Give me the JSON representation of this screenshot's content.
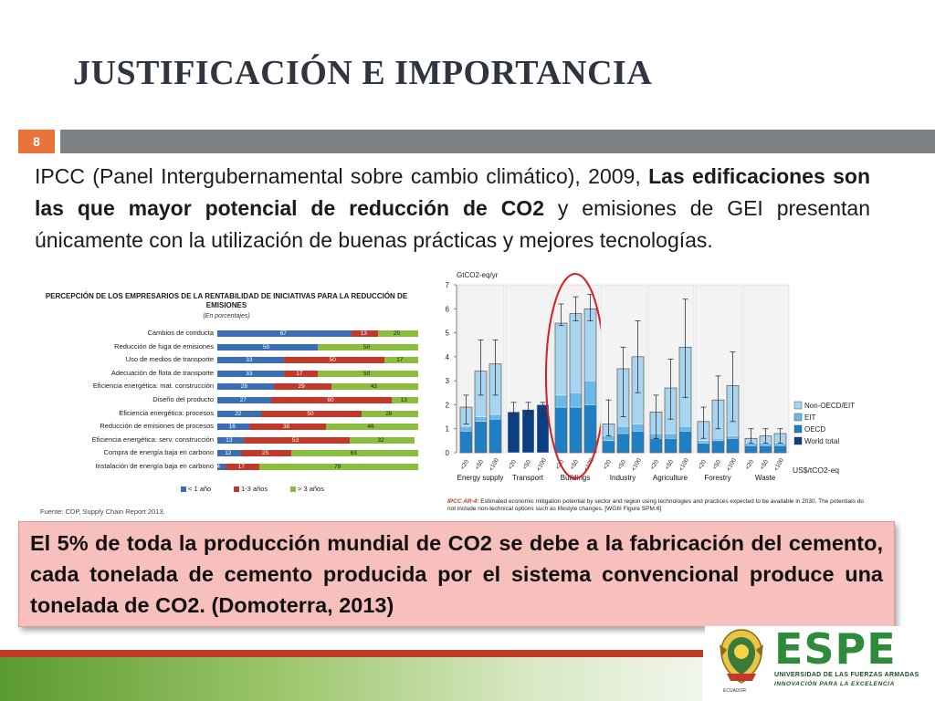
{
  "slide": {
    "title": "JUSTIFICACIÓN E IMPORTANCIA",
    "page_number": "8",
    "intro_prefix": "IPCC (Panel Intergubernamental sobre cambio climático), 2009, ",
    "intro_bold": "Las edificaciones son las que mayor potencial de reducción de CO2",
    "intro_suffix": " y emisiones de GEI presentan únicamente con la utilización de buenas prácticas y mejores tecnologías.",
    "callout": "El 5% de toda la producción mundial de CO2 se debe a la fabricación del cemento, cada tonelada de cemento producida por el sistema convencional produce una tonelada de CO2. (Domoterra, 2013)"
  },
  "branding": {
    "wordmark": "ESPE",
    "university": "UNIVERSIDAD DE LAS FUERZAS ARMADAS",
    "slogan": "INNOVACIÓN PARA LA EXCELENCIA",
    "crest_caption": "ECUADOR"
  },
  "colors": {
    "accent": "#e8743b",
    "footer_red": "#c0392b",
    "footer_green": "#5a9a2f",
    "callout_bg": "#f7c0bd"
  },
  "chart_data": [
    {
      "type": "bar",
      "orientation": "horizontal-stacked",
      "title": "PERCEPCIÓN DE LOS EMPRESARIOS DE LA RENTABILIDAD DE INICIATIVAS PARA LA REDUCCIÓN DE EMISIONES",
      "subtitle": "(En porcentajes)",
      "source": "Fuente: CDP, Supply Chain Report 2013.",
      "legend_position": "bottom",
      "categories": [
        "Cambios de conducta",
        "Reducción de fuga de emisiones",
        "Uso de medios de transporte",
        "Adecuación de flota de transporte",
        "Eficiencia energética: mat. construcción",
        "Diseño del producto",
        "Eficiencia energética: procesos",
        "Reducción de emisiones de procesos",
        "Eficiencia energética: serv. construcción",
        "Compra de energía baja en carbono",
        "Instalación de energía baja en carbono"
      ],
      "series": [
        {
          "name": "< 1 año",
          "color": "#3a6fb5",
          "values": [
            67,
            50,
            33,
            33,
            28,
            27,
            22,
            16,
            13,
            12,
            4
          ]
        },
        {
          "name": "1-3 años",
          "color": "#c0392b",
          "values": [
            13,
            0,
            50,
            17,
            29,
            60,
            50,
            38,
            53,
            25,
            17
          ]
        },
        {
          "name": "> 3 años",
          "color": "#8bbd3f",
          "values": [
            20,
            50,
            17,
            50,
            43,
            13,
            28,
            46,
            32,
            63,
            79
          ]
        }
      ],
      "xlim": [
        0,
        100
      ]
    },
    {
      "type": "bar",
      "orientation": "vertical-stacked-ranges",
      "ylabel": "GtCO2-eq/yr",
      "ylim": [
        0,
        7
      ],
      "yticks": [
        0,
        1,
        2,
        3,
        4,
        5,
        6,
        7
      ],
      "xlabel": "US$/tCO2-eq",
      "legend": [
        "Non-OECD/EIT",
        "EIT",
        "OECD",
        "World total"
      ],
      "legend_colors": [
        "#a8d4ef",
        "#6cb8e6",
        "#1f7fc4",
        "#0b3f82"
      ],
      "sectors": [
        {
          "name": "Energy supply",
          "bars": [
            {
              "price": "<20",
              "oecd": 0.9,
              "eit": 0.2,
              "non_oecd": 0.8,
              "total": 1.9,
              "range": [
                1.2,
                2.4
              ]
            },
            {
              "price": "<50",
              "oecd": 1.3,
              "eit": 0.2,
              "non_oecd": 1.9,
              "total": 3.4,
              "range": [
                2.4,
                4.7
              ]
            },
            {
              "price": "<100",
              "oecd": 1.4,
              "eit": 0.2,
              "non_oecd": 2.1,
              "total": 3.7,
              "range": [
                2.4,
                4.7
              ]
            }
          ]
        },
        {
          "name": "Transport",
          "bars": [
            {
              "price": "<20",
              "world": 1.7,
              "total": 1.7,
              "range": [
                1.6,
                2.1
              ]
            },
            {
              "price": "<50",
              "world": 1.8,
              "total": 1.8,
              "range": [
                1.6,
                2.1
              ]
            },
            {
              "price": "<100",
              "world": 2.0,
              "total": 2.0,
              "range": [
                1.6,
                2.1
              ]
            }
          ]
        },
        {
          "name": "Buildings",
          "bars": [
            {
              "price": "<20",
              "oecd": 1.9,
              "eit": 0.5,
              "non_oecd": 3.0,
              "total": 5.4,
              "range": [
                5.3,
                6.2
              ]
            },
            {
              "price": "<50",
              "oecd": 1.9,
              "eit": 0.6,
              "non_oecd": 3.3,
              "total": 5.8,
              "range": [
                5.5,
                6.5
              ]
            },
            {
              "price": "<100",
              "oecd": 2.0,
              "eit": 1.0,
              "non_oecd": 3.0,
              "total": 6.0,
              "range": [
                5.5,
                6.6
              ]
            }
          ]
        },
        {
          "name": "Industry",
          "bars": [
            {
              "price": "<20",
              "oecd": 0.5,
              "eit": 0.2,
              "non_oecd": 0.5,
              "total": 1.2,
              "range": [
                0.7,
                2.2
              ]
            },
            {
              "price": "<50",
              "oecd": 0.8,
              "eit": 0.3,
              "non_oecd": 2.4,
              "total": 3.5,
              "range": [
                1.5,
                4.4
              ]
            },
            {
              "price": "<100",
              "oecd": 0.9,
              "eit": 0.3,
              "non_oecd": 2.8,
              "total": 4.0,
              "range": [
                2.5,
                5.5
              ]
            }
          ]
        },
        {
          "name": "Agriculture",
          "bars": [
            {
              "price": "<20",
              "oecd": 0.6,
              "eit": 0.2,
              "non_oecd": 0.9,
              "total": 1.7,
              "range": [
                0.6,
                2.4
              ]
            },
            {
              "price": "<50",
              "oecd": 0.6,
              "eit": 0.2,
              "non_oecd": 1.9,
              "total": 2.7,
              "range": [
                1.4,
                3.9
              ]
            },
            {
              "price": "<100",
              "oecd": 0.9,
              "eit": 0.2,
              "non_oecd": 3.3,
              "total": 4.4,
              "range": [
                2.3,
                6.4
              ]
            }
          ]
        },
        {
          "name": "Forestry",
          "bars": [
            {
              "price": "<20",
              "oecd": 0.4,
              "eit": 0.1,
              "non_oecd": 0.8,
              "total": 1.3,
              "range": [
                0.6,
                1.9
              ]
            },
            {
              "price": "<50",
              "oecd": 0.5,
              "eit": 0.1,
              "non_oecd": 1.6,
              "total": 2.2,
              "range": [
                1.0,
                3.2
              ]
            },
            {
              "price": "<100",
              "oecd": 0.6,
              "eit": 0.1,
              "non_oecd": 2.1,
              "total": 2.8,
              "range": [
                1.3,
                4.2
              ]
            }
          ]
        },
        {
          "name": "Waste",
          "bars": [
            {
              "price": "<20",
              "oecd": 0.3,
              "eit": 0.1,
              "non_oecd": 0.2,
              "total": 0.6,
              "range": [
                0.4,
                1.0
              ]
            },
            {
              "price": "<50",
              "oecd": 0.3,
              "eit": 0.1,
              "non_oecd": 0.3,
              "total": 0.7,
              "range": [
                0.4,
                1.0
              ]
            },
            {
              "price": "<100",
              "oecd": 0.3,
              "eit": 0.1,
              "non_oecd": 0.4,
              "total": 0.8,
              "range": [
                0.4,
                1.0
              ]
            }
          ]
        }
      ],
      "highlighted_sector": "Buildings",
      "note_label": "IPCC AR-4:",
      "note_text": "Estimated economic mitigation potential by sector and region using technologies and practices expected to be available in 2030. The potentials do not include non-technical options such as lifestyle changes. [WGIII Figure SPM.6]"
    }
  ]
}
